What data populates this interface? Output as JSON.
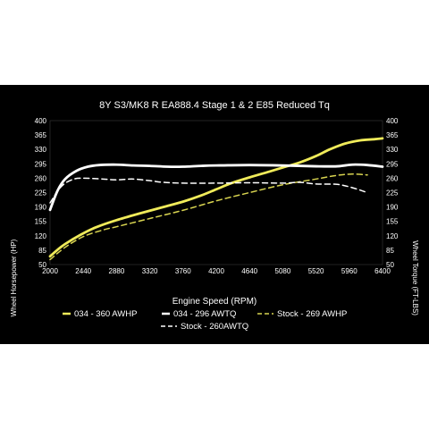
{
  "chart_data": {
    "type": "line",
    "title": "8Y S3/MK8 R EA888.4 Stage 1 & 2 E85 Reduced Tq",
    "xlabel": "Engine Speed (RPM)",
    "ylabel_left": "Wheel Horsepower (HP)",
    "ylabel_right": "Wheel Torque (FT-LBS)",
    "xlim": [
      2000,
      6400
    ],
    "ylim": [
      50,
      400
    ],
    "x_ticks": [
      "2000",
      "2440",
      "2880",
      "3320",
      "3760",
      "4200",
      "4640",
      "5080",
      "5520",
      "5960",
      "6400"
    ],
    "y_ticks_left": [
      "50",
      "85",
      "120",
      "155",
      "190",
      "225",
      "260",
      "295",
      "330",
      "365",
      "400"
    ],
    "y_ticks_right": [
      "50",
      "85",
      "120",
      "155",
      "190",
      "225",
      "260",
      "295",
      "330",
      "365",
      "400"
    ],
    "grid": false,
    "legend_position": "bottom",
    "series": [
      {
        "name": "034 - 360 AWHP",
        "color": "#f0eb5a",
        "dash": "solid",
        "x": [
          2000,
          2100,
          2200,
          2400,
          2600,
          2880,
          3200,
          3500,
          3760,
          4000,
          4200,
          4400,
          4640,
          4900,
          5080,
          5300,
          5520,
          5700,
          5900,
          6100,
          6300,
          6400
        ],
        "y": [
          70,
          86,
          100,
          122,
          140,
          158,
          175,
          190,
          203,
          218,
          233,
          248,
          262,
          276,
          286,
          298,
          314,
          330,
          344,
          352,
          355,
          357
        ]
      },
      {
        "name": "034 - 296 AWTQ",
        "color": "#ffffff",
        "dash": "solid",
        "x": [
          2000,
          2100,
          2200,
          2350,
          2500,
          2650,
          2880,
          3100,
          3320,
          3550,
          3760,
          4000,
          4200,
          4640,
          5080,
          5520,
          5800,
          6000,
          6200,
          6400
        ],
        "y": [
          183,
          230,
          258,
          278,
          288,
          292,
          293,
          291,
          290,
          288,
          288,
          290,
          291,
          292,
          291,
          289,
          289,
          293,
          292,
          288
        ]
      },
      {
        "name": "Stock - 269 AWHP",
        "color": "#d8d450",
        "dash": "dashed",
        "x": [
          2000,
          2200,
          2440,
          2700,
          2880,
          3320,
          3760,
          4200,
          4640,
          5080,
          5520,
          5800,
          6000,
          6200
        ],
        "y": [
          62,
          92,
          118,
          134,
          142,
          162,
          182,
          205,
          225,
          244,
          258,
          267,
          270,
          268
        ]
      },
      {
        "name": "Stock - 260AWTQ",
        "color": "#ffffff",
        "dash": "dashed",
        "x": [
          2000,
          2150,
          2300,
          2440,
          2700,
          2880,
          3100,
          3320,
          3500,
          3760,
          4200,
          4640,
          5080,
          5300,
          5520,
          5800,
          6000,
          6200
        ],
        "y": [
          200,
          240,
          257,
          260,
          258,
          256,
          258,
          254,
          250,
          248,
          248,
          249,
          248,
          250,
          246,
          245,
          237,
          225
        ]
      }
    ]
  }
}
